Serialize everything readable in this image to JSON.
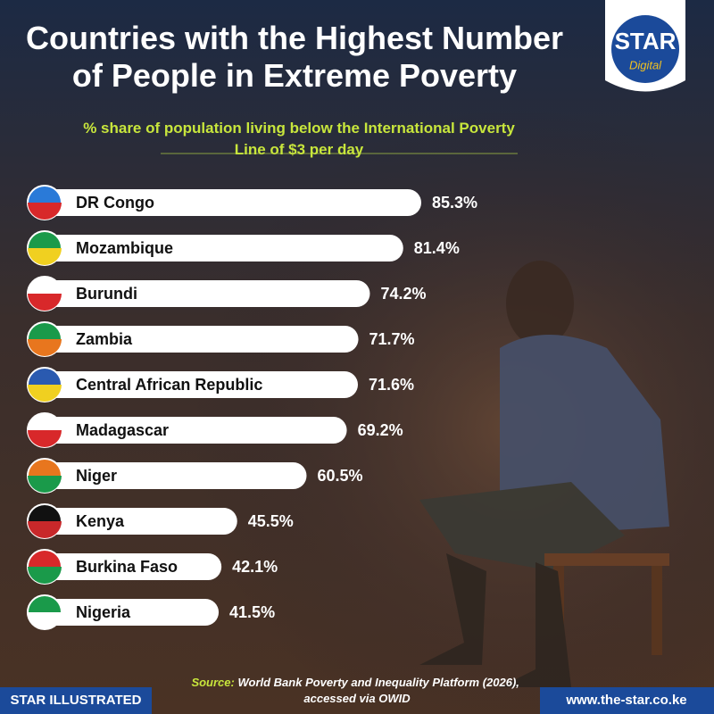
{
  "chart_data": {
    "type": "bar",
    "orientation": "horizontal",
    "title": "Countries with the Highest Number of People in Extreme Poverty",
    "subtitle": "% share of population living below the International Poverty Line of $3 per day",
    "categories": [
      "DR Congo",
      "Mozambique",
      "Burundi",
      "Zambia",
      "Central African Republic",
      "Madagascar",
      "Niger",
      "Kenya",
      "Burkina Faso",
      "Nigeria"
    ],
    "values": [
      85.3,
      81.4,
      74.2,
      71.7,
      71.6,
      69.2,
      60.5,
      45.5,
      42.1,
      41.5
    ],
    "value_labels": [
      "85.3%",
      "81.4%",
      "74.2%",
      "71.7%",
      "71.6%",
      "69.2%",
      "60.5%",
      "45.5%",
      "42.1%",
      "41.5%"
    ],
    "color": "#ffffff",
    "source_label": "Source:",
    "source_text": "World Bank Poverty and Inequality Platform (2026), accessed via OWID"
  },
  "branding": {
    "logo": "STAR",
    "logo_sub": "Digital",
    "footer_left": "STAR ILLUSTRATED",
    "footer_right": "www.the-star.co.ke"
  }
}
